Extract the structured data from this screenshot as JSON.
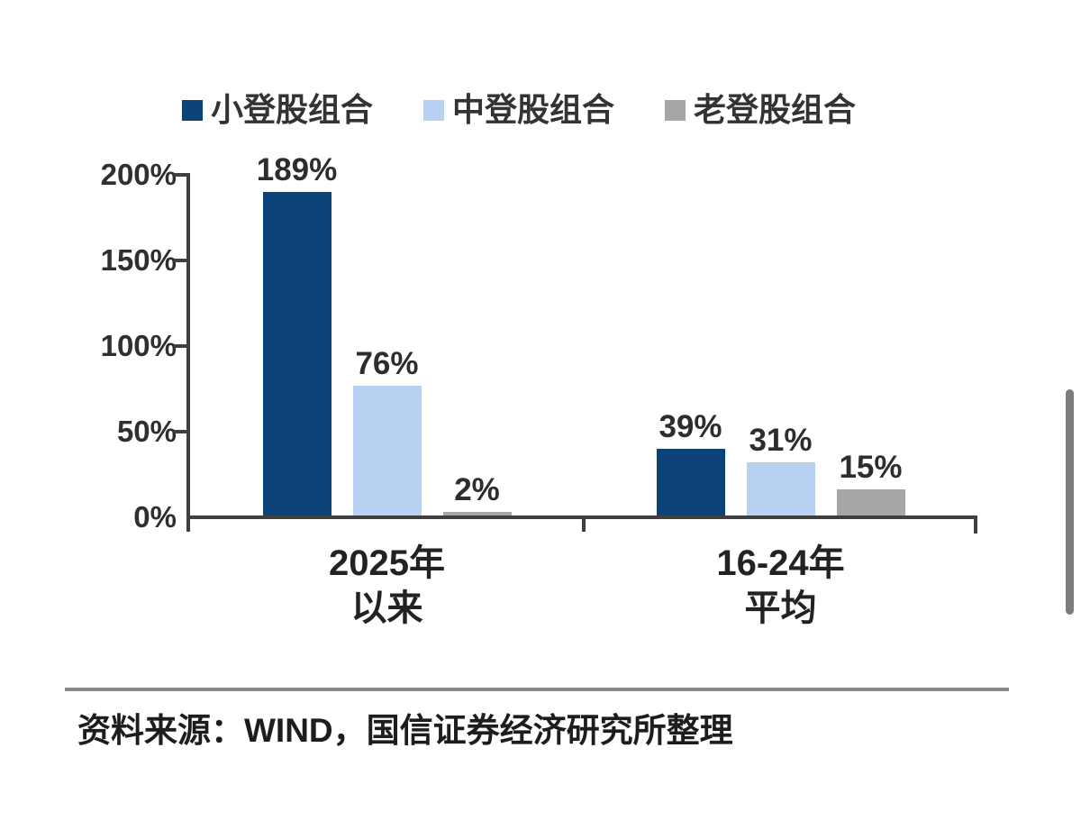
{
  "chart_data": {
    "type": "bar",
    "title": "",
    "xlabel": "",
    "ylabel": "",
    "categories": [
      "2025年\n以来",
      "16-24年\n平均"
    ],
    "series": [
      {
        "name": "小登股组合",
        "color": "#0b4379",
        "values": [
          189,
          39
        ]
      },
      {
        "name": "中登股组合",
        "color": "#b8d0f2",
        "values": [
          76,
          31
        ]
      },
      {
        "name": "老登股组合",
        "color": "#a6a6a6",
        "values": [
          2,
          15
        ]
      }
    ],
    "value_suffix": "%",
    "data_labels": [
      "189%",
      "76%",
      "2%",
      "39%",
      "31%",
      "15%"
    ],
    "yticks": [
      0,
      50,
      100,
      150,
      200
    ],
    "ytick_labels": [
      "0%",
      "50%",
      "100%",
      "150%",
      "200%"
    ],
    "ylim": [
      0,
      200
    ],
    "grid": false,
    "legend_position": "top",
    "axis_color": "#3f3f3f",
    "text_color": "#2d2d2d"
  },
  "footer": {
    "source": "资料来源：WIND，国信证券经济研究所整理"
  }
}
